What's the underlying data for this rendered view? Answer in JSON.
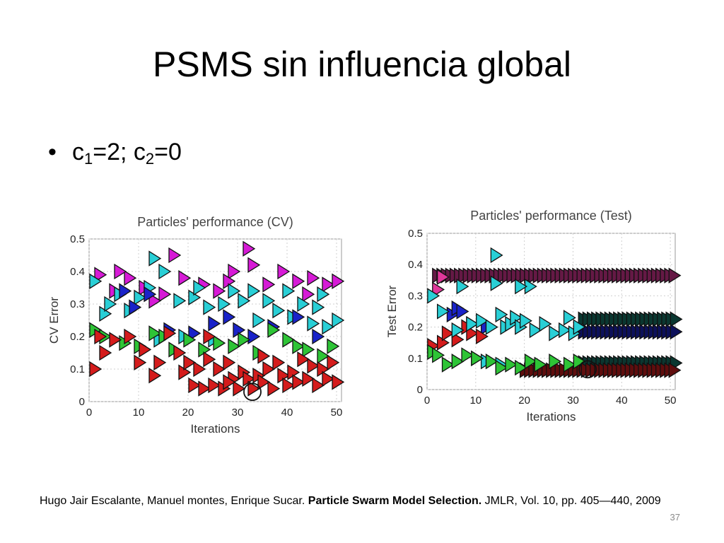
{
  "slide": {
    "title": "PSMS sin influencia global",
    "bullet": {
      "symbol": "•",
      "c1_base": "c",
      "c1_sub": "1",
      "middle": "=2; c",
      "c2_sub": "2",
      "tail": "=0"
    },
    "citation": {
      "authors": "Hugo Jair Escalante, Manuel montes, Enrique Sucar. ",
      "paper_title": "Particle Swarm Model Selection.",
      "venue": " JMLR, Vol. 10, pp. 405—440, 2009"
    },
    "slide_number": "37"
  },
  "colors": {
    "magenta": "#d61ad6",
    "cyan": "#29cfd6",
    "blue": "#1a23c9",
    "green": "#2ec436",
    "red": "#d41c1c",
    "pink": "#e0379a",
    "teal": "#167a6a"
  },
  "chart_data": [
    {
      "type": "scatter",
      "title": "Particles' performance (CV)",
      "xlabel": "Iterations",
      "ylabel": "CV Error",
      "xlim": [
        0,
        51
      ],
      "ylim": [
        0,
        0.5
      ],
      "xticks": [
        "0",
        "10",
        "20",
        "30",
        "40",
        "50"
      ],
      "yticks": [
        "0",
        "0.1",
        "0.2",
        "0.3",
        "0.4",
        "0.5"
      ],
      "grid": true,
      "marker": "triangle-right",
      "series": [
        {
          "color": "magenta",
          "points": [
            [
              2,
              0.39
            ],
            [
              5,
              0.34
            ],
            [
              8,
              0.38
            ],
            [
              11,
              0.35
            ],
            [
              15,
              0.33
            ],
            [
              19,
              0.38
            ],
            [
              23,
              0.36
            ],
            [
              26,
              0.34
            ],
            [
              29,
              0.4
            ],
            [
              32,
              0.47
            ],
            [
              33,
              0.42
            ],
            [
              36,
              0.36
            ],
            [
              39,
              0.4
            ],
            [
              42,
              0.37
            ],
            [
              45,
              0.38
            ],
            [
              48,
              0.36
            ],
            [
              50,
              0.37
            ],
            [
              17,
              0.45
            ],
            [
              6,
              0.4
            ],
            [
              13,
              0.31
            ],
            [
              28,
              0.37
            ],
            [
              44,
              0.33
            ]
          ]
        },
        {
          "color": "cyan",
          "points": [
            [
              1,
              0.37
            ],
            [
              3,
              0.27
            ],
            [
              4,
              0.3
            ],
            [
              6,
              0.33
            ],
            [
              8,
              0.28
            ],
            [
              10,
              0.32
            ],
            [
              12,
              0.35
            ],
            [
              13,
              0.44
            ],
            [
              15,
              0.4
            ],
            [
              18,
              0.31
            ],
            [
              21,
              0.32
            ],
            [
              22,
              0.35
            ],
            [
              24,
              0.29
            ],
            [
              27,
              0.3
            ],
            [
              29,
              0.34
            ],
            [
              31,
              0.31
            ],
            [
              33,
              0.34
            ],
            [
              34,
              0.25
            ],
            [
              36,
              0.31
            ],
            [
              38,
              0.28
            ],
            [
              40,
              0.34
            ],
            [
              41,
              0.26
            ],
            [
              43,
              0.3
            ],
            [
              45,
              0.24
            ],
            [
              46,
              0.29
            ],
            [
              47,
              0.33
            ],
            [
              48,
              0.23
            ],
            [
              50,
              0.25
            ],
            [
              25,
              0.19
            ],
            [
              14,
              0.19
            ],
            [
              19,
              0.2
            ]
          ]
        },
        {
          "color": "blue",
          "points": [
            [
              7,
              0.34
            ],
            [
              9,
              0.29
            ],
            [
              12,
              0.33
            ],
            [
              16,
              0.22
            ],
            [
              21,
              0.21
            ],
            [
              25,
              0.24
            ],
            [
              28,
              0.26
            ],
            [
              30,
              0.22
            ],
            [
              33,
              0.2
            ],
            [
              37,
              0.23
            ],
            [
              42,
              0.26
            ],
            [
              46,
              0.2
            ]
          ]
        },
        {
          "color": "green",
          "points": [
            [
              1,
              0.22
            ],
            [
              3,
              0.2
            ],
            [
              7,
              0.18
            ],
            [
              10,
              0.17
            ],
            [
              13,
              0.21
            ],
            [
              15,
              0.2
            ],
            [
              17,
              0.16
            ],
            [
              20,
              0.19
            ],
            [
              23,
              0.16
            ],
            [
              26,
              0.18
            ],
            [
              29,
              0.17
            ],
            [
              31,
              0.19
            ],
            [
              34,
              0.15
            ],
            [
              37,
              0.22
            ],
            [
              40,
              0.19
            ],
            [
              42,
              0.17
            ],
            [
              44,
              0.16
            ],
            [
              47,
              0.14
            ],
            [
              49,
              0.17
            ]
          ]
        },
        {
          "color": "red",
          "points": [
            [
              1,
              0.1
            ],
            [
              2,
              0.2
            ],
            [
              3,
              0.15
            ],
            [
              5,
              0.19
            ],
            [
              8,
              0.2
            ],
            [
              10,
              0.12
            ],
            [
              11,
              0.16
            ],
            [
              13,
              0.08
            ],
            [
              14,
              0.12
            ],
            [
              16,
              0.21
            ],
            [
              18,
              0.15
            ],
            [
              19,
              0.09
            ],
            [
              20,
              0.12
            ],
            [
              21,
              0.05
            ],
            [
              22,
              0.1
            ],
            [
              23,
              0.04
            ],
            [
              24,
              0.13
            ],
            [
              25,
              0.05
            ],
            [
              26,
              0.1
            ],
            [
              27,
              0.04
            ],
            [
              28,
              0.12
            ],
            [
              29,
              0.07
            ],
            [
              30,
              0.04
            ],
            [
              31,
              0.09
            ],
            [
              32,
              0.07
            ],
            [
              33,
              0.04
            ],
            [
              34,
              0.08
            ],
            [
              35,
              0.06
            ],
            [
              36,
              0.1
            ],
            [
              37,
              0.04
            ],
            [
              38,
              0.12
            ],
            [
              39,
              0.08
            ],
            [
              40,
              0.05
            ],
            [
              41,
              0.09
            ],
            [
              42,
              0.06
            ],
            [
              43,
              0.13
            ],
            [
              44,
              0.07
            ],
            [
              45,
              0.11
            ],
            [
              46,
              0.05
            ],
            [
              47,
              0.1
            ],
            [
              48,
              0.07
            ],
            [
              49,
              0.12
            ],
            [
              50,
              0.06
            ],
            [
              28,
              0.06
            ],
            [
              35,
              0.14
            ],
            [
              24,
              0.2
            ]
          ]
        }
      ],
      "highlight": {
        "x": 33,
        "y": 0.03
      }
    },
    {
      "type": "scatter",
      "title": "Particles' performance (Test)",
      "xlabel": "Iterations",
      "ylabel": "Test Error",
      "xlim": [
        0,
        51
      ],
      "ylim": [
        0,
        0.5
      ],
      "xticks": [
        "0",
        "10",
        "20",
        "30",
        "40",
        "50"
      ],
      "yticks": [
        "0",
        "0.1",
        "0.2",
        "0.3",
        "0.4",
        "0.5"
      ],
      "grid": true,
      "marker": "triangle-right",
      "series": [
        {
          "color": "pink",
          "band": {
            "from": 2,
            "to": 51,
            "step": 0.9,
            "y": 0.365,
            "dark": true
          },
          "points": [
            [
              2,
              0.32
            ],
            [
              3,
              0.36
            ]
          ]
        },
        {
          "color": "teal",
          "band": {
            "from": 32,
            "to": 51,
            "step": 0.9,
            "y": 0.225,
            "dark": true
          },
          "points": []
        },
        {
          "color": "blue",
          "band": {
            "from": 32,
            "to": 51,
            "step": 0.9,
            "y": 0.185,
            "dark": true
          },
          "points": [
            [
              5,
              0.24
            ],
            [
              6,
              0.26
            ],
            [
              7,
              0.25
            ],
            [
              9,
              0.21
            ],
            [
              12,
              0.2
            ]
          ]
        },
        {
          "color": "teal",
          "band": {
            "from": 32,
            "to": 51,
            "step": 0.9,
            "y": 0.085,
            "dark": true
          },
          "points": []
        },
        {
          "color": "red",
          "band": {
            "from": 20,
            "to": 51,
            "step": 0.9,
            "y": 0.062,
            "dark": true
          },
          "points": [
            [
              1,
              0.14
            ],
            [
              3,
              0.15
            ],
            [
              4,
              0.18
            ],
            [
              6,
              0.16
            ],
            [
              8,
              0.2
            ],
            [
              9,
              0.18
            ],
            [
              11,
              0.17
            ]
          ]
        },
        {
          "color": "cyan",
          "points": [
            [
              1,
              0.3
            ],
            [
              3,
              0.25
            ],
            [
              6,
              0.19
            ],
            [
              7,
              0.33
            ],
            [
              9,
              0.21
            ],
            [
              11,
              0.22
            ],
            [
              13,
              0.2
            ],
            [
              14,
              0.43
            ],
            [
              14,
              0.34
            ],
            [
              15,
              0.24
            ],
            [
              16,
              0.2
            ],
            [
              17,
              0.21
            ],
            [
              18,
              0.23
            ],
            [
              19,
              0.2
            ],
            [
              20,
              0.22
            ],
            [
              21,
              0.33
            ],
            [
              22,
              0.19
            ],
            [
              24,
              0.21
            ],
            [
              26,
              0.18
            ],
            [
              28,
              0.19
            ],
            [
              29,
              0.23
            ],
            [
              30,
              0.18
            ],
            [
              31,
              0.2
            ],
            [
              19,
              0.33
            ],
            [
              12,
              0.09
            ],
            [
              10,
              0.1
            ],
            [
              15,
              0.08
            ]
          ]
        },
        {
          "color": "green",
          "points": [
            [
              1,
              0.12
            ],
            [
              2,
              0.11
            ],
            [
              4,
              0.08
            ],
            [
              6,
              0.09
            ],
            [
              8,
              0.11
            ],
            [
              10,
              0.1
            ],
            [
              13,
              0.09
            ],
            [
              15,
              0.07
            ],
            [
              17,
              0.08
            ],
            [
              19,
              0.07
            ],
            [
              21,
              0.09
            ],
            [
              23,
              0.08
            ],
            [
              26,
              0.09
            ],
            [
              29,
              0.08
            ],
            [
              31,
              0.09
            ]
          ]
        }
      ],
      "highlight": {
        "x": 33,
        "y": 0.065
      }
    }
  ]
}
